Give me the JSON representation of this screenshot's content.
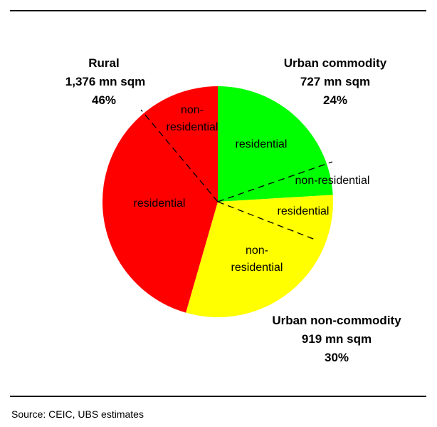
{
  "chart_data": {
    "type": "pie",
    "slices": [
      {
        "name": "Urban commodity",
        "value_text": "727 mn sqm",
        "value": 727,
        "percent_text": "24%",
        "percent": 24,
        "color": "#00ff00",
        "sub": [
          {
            "label": "residential"
          },
          {
            "label": "non-residential"
          }
        ]
      },
      {
        "name": "Urban non-commodity",
        "value_text": "919 mn sqm",
        "value": 919,
        "percent_text": "30%",
        "percent": 30,
        "color": "#ffff00",
        "sub": [
          {
            "label": "residential"
          },
          {
            "label": "non-residential"
          }
        ]
      },
      {
        "name": "Rural",
        "value_text": "1,376 mn sqm",
        "value": 1376,
        "percent_text": "46%",
        "percent": 46,
        "color": "#ff0000",
        "sub": [
          {
            "label": "residential"
          },
          {
            "label": "non-residential"
          }
        ]
      }
    ]
  },
  "source": "Source: CEIC, UBS estimates"
}
